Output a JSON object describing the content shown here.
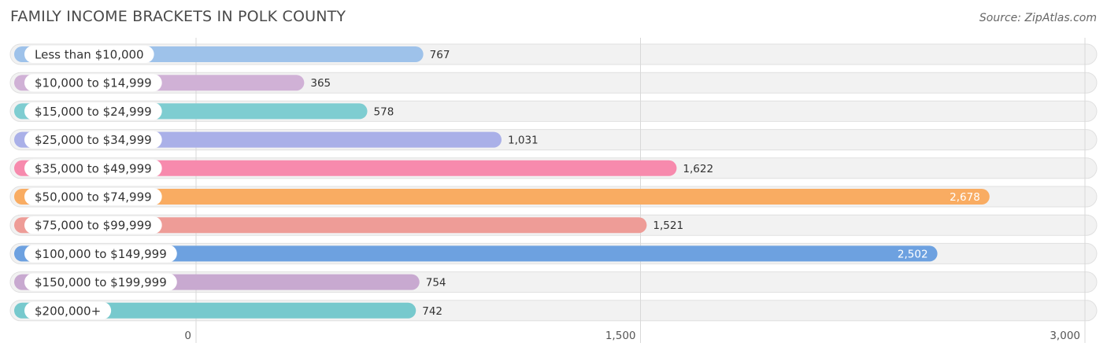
{
  "chart_data": {
    "type": "bar",
    "orientation": "horizontal",
    "title": "FAMILY INCOME BRACKETS IN POLK COUNTY",
    "source": "Source: ZipAtlas.com",
    "categories": [
      "Less than $10,000",
      "$10,000 to $14,999",
      "$15,000 to $24,999",
      "$25,000 to $34,999",
      "$35,000 to $49,999",
      "$50,000 to $74,999",
      "$75,000 to $99,999",
      "$100,000 to $149,999",
      "$150,000 to $199,999",
      "$200,000+"
    ],
    "values": [
      767,
      365,
      578,
      1031,
      1622,
      2678,
      1521,
      2502,
      754,
      742
    ],
    "value_labels": [
      "767",
      "365",
      "578",
      "1,031",
      "1,622",
      "2,678",
      "1,521",
      "2,502",
      "754",
      "742"
    ],
    "colors": [
      "#9ec2ea",
      "#d0b1d6",
      "#7ecdd1",
      "#aab0e8",
      "#f78aad",
      "#f9ac62",
      "#ee9c97",
      "#6da1e0",
      "#c8a9d0",
      "#77c9cd"
    ],
    "xlim": [
      0,
      3000
    ],
    "ticks": [
      0,
      1500,
      3000
    ],
    "tick_labels": [
      "0",
      "1,500",
      "3,000"
    ],
    "grid": true
  }
}
